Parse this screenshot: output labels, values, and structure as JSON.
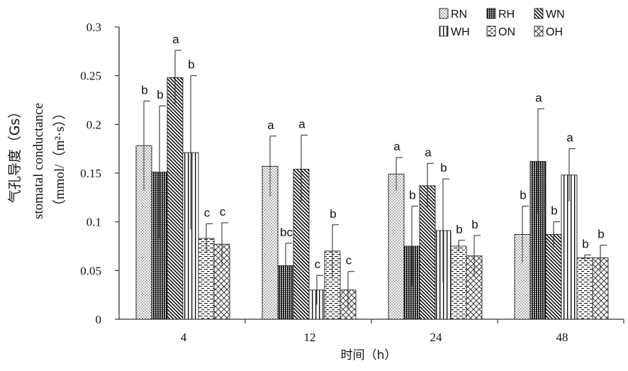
{
  "chart_data": {
    "type": "bar",
    "title": "",
    "ylabel_cn": "气孔导度（Gs）",
    "ylabel_en": "stomatal conductance",
    "ylabel_unit": "（mmol/（m²·s））",
    "xlabel": "时间（h）",
    "ylim": [
      0,
      0.3
    ],
    "yticks": [
      "0",
      "0.05",
      "0.1",
      "0.15",
      "0.2",
      "0.25",
      "0.3"
    ],
    "categories": [
      "4",
      "12",
      "24",
      "48"
    ],
    "legend_position": "top-right",
    "series": [
      {
        "name": "RN",
        "pattern": "dots",
        "values": [
          0.178,
          0.157,
          0.149,
          0.087
        ],
        "errors": [
          0.046,
          0.031,
          0.017,
          0.029
        ],
        "letters": [
          "b",
          "a",
          "a",
          "b"
        ]
      },
      {
        "name": "RH",
        "pattern": "vertical-dense",
        "values": [
          0.151,
          0.055,
          0.075,
          0.162
        ],
        "errors": [
          0.068,
          0.023,
          0.041,
          0.054
        ],
        "letters": [
          "b",
          "bc",
          "b",
          "a"
        ]
      },
      {
        "name": "WN",
        "pattern": "diagonal",
        "values": [
          0.248,
          0.154,
          0.137,
          0.087
        ],
        "errors": [
          0.028,
          0.035,
          0.023,
          0.013
        ],
        "letters": [
          "a",
          "a",
          "a",
          "b"
        ]
      },
      {
        "name": "WH",
        "pattern": "vertical",
        "values": [
          0.171,
          0.03,
          0.091,
          0.148
        ],
        "errors": [
          0.079,
          0.015,
          0.053,
          0.027
        ],
        "letters": [
          "b",
          "c",
          "b",
          "a"
        ]
      },
      {
        "name": "ON",
        "pattern": "dashes",
        "values": [
          0.083,
          0.07,
          0.075,
          0.063
        ],
        "errors": [
          0.015,
          0.027,
          0.006,
          0.003
        ],
        "letters": [
          "c",
          "b",
          "b",
          "b"
        ]
      },
      {
        "name": "OH",
        "pattern": "crosshatch",
        "values": [
          0.077,
          0.03,
          0.065,
          0.063
        ],
        "errors": [
          0.022,
          0.019,
          0.021,
          0.013
        ],
        "letters": [
          "c",
          "c",
          "b",
          "b"
        ]
      }
    ]
  }
}
